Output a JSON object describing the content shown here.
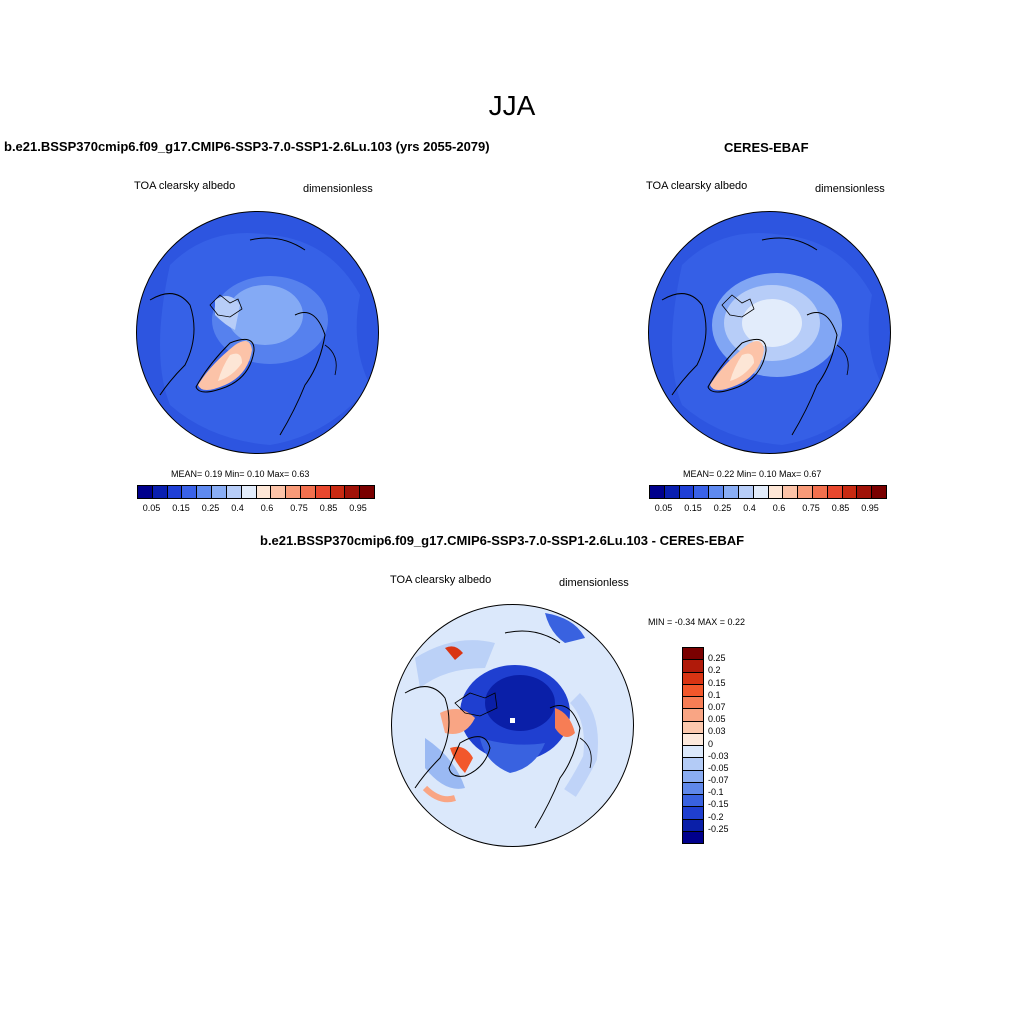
{
  "figure": {
    "season": "JJA"
  },
  "panels": {
    "model": {
      "title": "b.e21.BSSP370cmip6.f09_g17.CMIP6-SSP3-7.0-SSP1-2.6Lu.103 (yrs 2055-2079)",
      "variable": "TOA clearsky albedo",
      "units": "dimensionless",
      "stats": "MEAN=   0.19  Min=   0.10  Max=   0.63"
    },
    "obs": {
      "title": "CERES-EBAF",
      "variable": "TOA clearsky albedo",
      "units": "dimensionless",
      "stats": "MEAN=   0.22  Min=   0.10  Max=   0.67"
    },
    "diff": {
      "title": "b.e21.BSSP370cmip6.f09_g17.CMIP6-SSP3-7.0-SSP1-2.6Lu.103 - CERES-EBAF",
      "variable": "TOA clearsky albedo",
      "units": "dimensionless",
      "minmax": "MIN =  -0.34 MAX =   0.22"
    }
  },
  "colorbar_abs": {
    "labels": [
      "0.05",
      "0.15",
      "0.25",
      "0.4",
      "0.6",
      "0.75",
      "0.85",
      "0.95"
    ],
    "colors": [
      "#00008c",
      "#0a1fb0",
      "#1f3fd6",
      "#3a62e8",
      "#5f8af0",
      "#8aaef5",
      "#b7cdf8",
      "#e2ecfb",
      "#fde6d6",
      "#fcc3a8",
      "#f89a78",
      "#f2704e",
      "#e8472d",
      "#c82a12",
      "#a01208",
      "#7a0000"
    ]
  },
  "colorbar_diff": {
    "labels": [
      "0.25",
      "0.2",
      "0.15",
      "0.1",
      "0.07",
      "0.05",
      "0.03",
      "0",
      "-0.03",
      "-0.05",
      "-0.07",
      "-0.1",
      "-0.15",
      "-0.2",
      "-0.25"
    ],
    "colors": [
      "#7a0000",
      "#b01a0a",
      "#d93413",
      "#f2572b",
      "#f77d55",
      "#f9a584",
      "#fcc8ad",
      "#fde9dc",
      "#dbe8fb",
      "#b3cbf6",
      "#8aacf1",
      "#5f88ea",
      "#3962e0",
      "#1f3fd0",
      "#0a1fa8",
      "#00008c"
    ]
  },
  "map_colors": {
    "ocean_abs": "#2d55e0",
    "ocean_abs_light": "#3a66ea",
    "ice_abs": "#b7cdf8",
    "greenland_abs": "#fcc3a8",
    "diff_base": "#dbe8fb",
    "diff_negative": "#1f3fd0",
    "diff_positive": "#f77d55"
  }
}
